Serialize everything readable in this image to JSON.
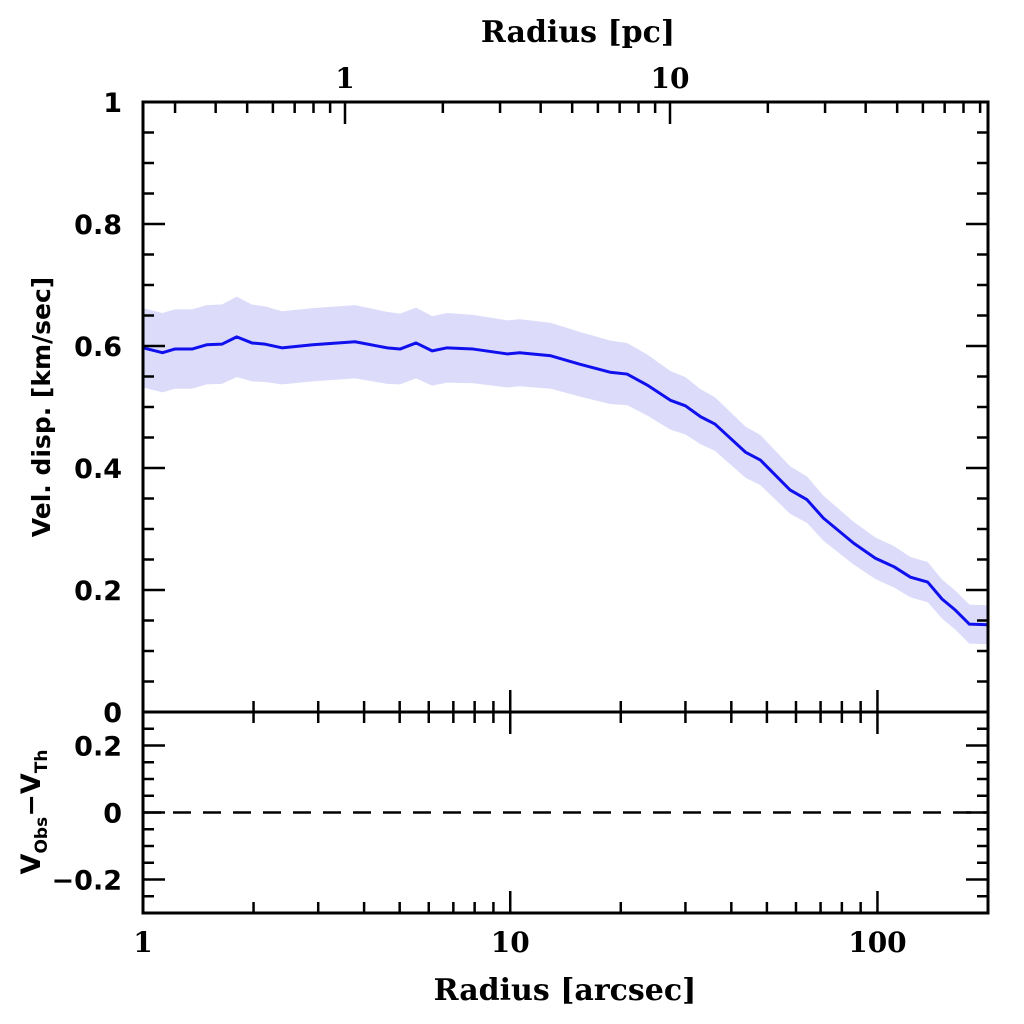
{
  "chart_data": {
    "type": "line",
    "colors": {
      "line": "#1010ee",
      "band": "#dcdcfa",
      "axis": "#000000"
    },
    "main_panel": {
      "xlabel": "Radius [arcsec]",
      "ylabel": "Vel. disp. [km/sec]",
      "xscale": "log",
      "xlim": [
        1,
        200
      ],
      "ylim": [
        0,
        1
      ],
      "yticks": [
        0,
        0.2,
        0.4,
        0.6,
        0.8,
        1
      ],
      "ytick_labels": [
        "0",
        "0.2",
        "0.4",
        "0.6",
        "0.8",
        "1"
      ],
      "series": [
        {
          "name": "Velocity dispersion",
          "x": [
            1.0,
            1.13,
            1.22,
            1.36,
            1.49,
            1.64,
            1.8,
            1.98,
            2.15,
            2.39,
            2.9,
            3.78,
            4.62,
            5.01,
            5.54,
            6.13,
            6.73,
            7.93,
            9.83,
            10.6,
            12.9,
            15.5,
            18.7,
            20.8,
            23.6,
            27.3,
            30.0,
            33.0,
            36.1,
            43.7,
            48.0,
            57.8,
            64.3,
            71.2,
            86.0,
            98.7,
            111,
            123,
            137,
            150,
            163,
            178,
            200
          ],
          "y": [
            0.597,
            0.589,
            0.595,
            0.595,
            0.602,
            0.603,
            0.615,
            0.605,
            0.603,
            0.597,
            0.602,
            0.607,
            0.597,
            0.595,
            0.605,
            0.592,
            0.597,
            0.595,
            0.587,
            0.589,
            0.584,
            0.57,
            0.557,
            0.554,
            0.536,
            0.511,
            0.502,
            0.484,
            0.472,
            0.426,
            0.413,
            0.364,
            0.348,
            0.318,
            0.277,
            0.252,
            0.238,
            0.221,
            0.213,
            0.185,
            0.167,
            0.144,
            0.143
          ],
          "err": [
            0.065,
            0.065,
            0.065,
            0.065,
            0.065,
            0.065,
            0.066,
            0.063,
            0.062,
            0.06,
            0.06,
            0.06,
            0.059,
            0.058,
            0.058,
            0.057,
            0.057,
            0.056,
            0.055,
            0.055,
            0.054,
            0.053,
            0.052,
            0.051,
            0.05,
            0.048,
            0.047,
            0.045,
            0.044,
            0.042,
            0.041,
            0.039,
            0.038,
            0.037,
            0.035,
            0.034,
            0.034,
            0.033,
            0.033,
            0.032,
            0.032,
            0.032,
            0.032
          ]
        }
      ]
    },
    "residual_panel": {
      "ylabel_parts": [
        "V",
        "Obs",
        "−",
        "V",
        "Th"
      ],
      "ylim": [
        -0.3,
        0.3
      ],
      "yticks": [
        -0.2,
        0,
        0.2
      ],
      "ytick_labels": [
        "−0.2",
        "0",
        "0.2"
      ],
      "reference_line": 0,
      "reference_style": "dashed"
    },
    "bottom_axis": {
      "label": "Radius [arcsec]",
      "ticks": [
        1,
        10,
        100
      ],
      "tick_labels": [
        "1",
        "10",
        "100"
      ]
    },
    "top_axis": {
      "label": "Radius [pc]",
      "ticks": [
        1,
        10
      ],
      "tick_labels": [
        "1",
        "10"
      ]
    },
    "grid": false
  }
}
